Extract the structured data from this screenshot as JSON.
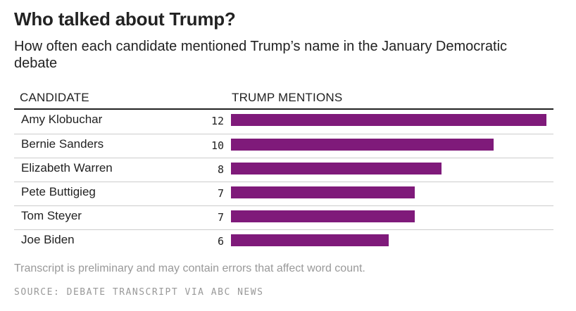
{
  "chart_data": {
    "type": "bar",
    "orientation": "horizontal",
    "title": "Who talked about Trump?",
    "subtitle": "How often each candidate mentioned Trump’s name in the January Democratic debate",
    "column_headers": {
      "category": "CANDIDATE",
      "value": "TRUMP MENTIONS"
    },
    "categories": [
      "Amy Klobuchar",
      "Bernie Sanders",
      "Elizabeth Warren",
      "Pete Buttigieg",
      "Tom Steyer",
      "Joe Biden"
    ],
    "values": [
      12,
      10,
      8,
      7,
      7,
      6
    ],
    "xlim": [
      0,
      12
    ],
    "bar_color": "#7f1a7a",
    "note": "Transcript is preliminary and may contain errors that affect word count.",
    "source": "SOURCE: DEBATE TRANSCRIPT VIA ABC NEWS"
  }
}
